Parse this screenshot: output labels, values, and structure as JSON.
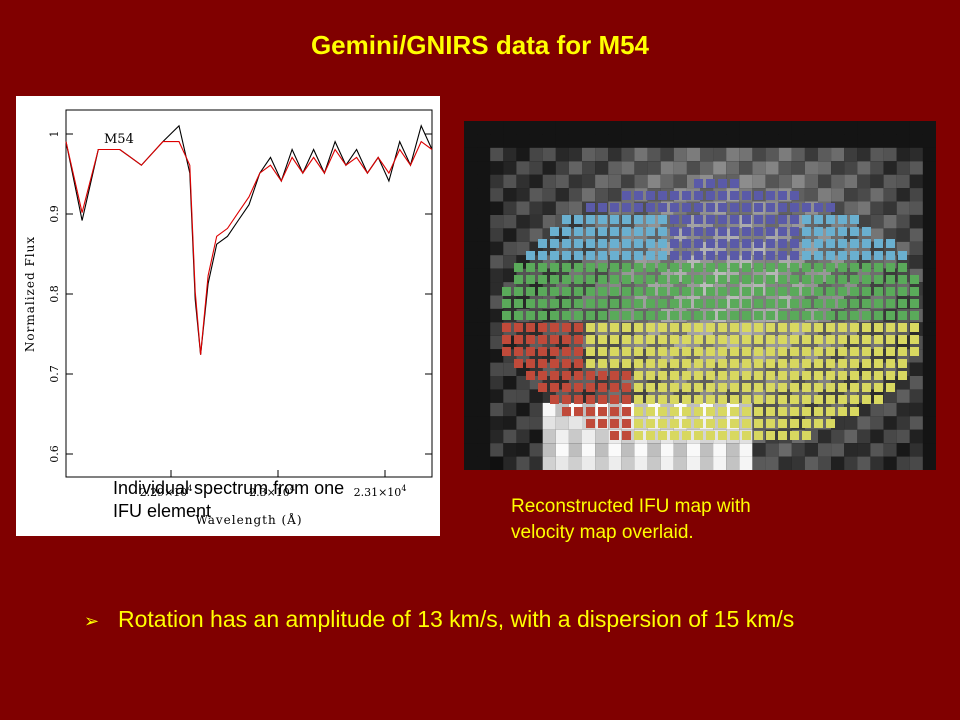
{
  "title": "Gemini/GNIRS data for M54",
  "spectrum": {
    "object_label": "M54",
    "ylabel": "Normalized Flux",
    "xlabel": "Wavelength (Å)",
    "yticks": [
      "1",
      "0.9",
      "0.8",
      "0.7",
      "0.6"
    ],
    "xticks": [
      "2.29×10",
      "2.3×10",
      "2.31×10"
    ],
    "xtick_exponent": "4",
    "caption_line1": "Individual spectrum from one",
    "caption_line2": "IFU element",
    "colors": {
      "observed": "#000000",
      "model": "#dd0000"
    }
  },
  "chart_data": {
    "type": "line",
    "xlabel": "Wavelength (Å)",
    "ylabel": "Normalized Flux",
    "ylim": [
      0.575,
      1.04
    ],
    "xlim": [
      22820,
      23160
    ],
    "x_ticks": [
      22900,
      23000,
      23100
    ],
    "y_ticks": [
      1.0,
      0.9,
      0.8,
      0.7,
      0.6
    ],
    "series": [
      {
        "x": [
          22820,
          22835,
          22850,
          22870,
          22890,
          22910,
          22925,
          22935,
          22940,
          22945,
          22952,
          22960,
          22970,
          22980,
          22990,
          23000,
          23010,
          23020,
          23030,
          23040,
          23050,
          23060,
          23070,
          23080,
          23090,
          23100,
          23110,
          23120,
          23130,
          23140,
          23150,
          23160
        ],
        "values": [
          1.0,
          0.9,
          0.99,
          0.99,
          0.97,
          1.0,
          1.02,
          0.96,
          0.8,
          0.73,
          0.82,
          0.87,
          0.88,
          0.9,
          0.92,
          0.96,
          0.98,
          0.95,
          0.99,
          0.96,
          0.99,
          0.96,
          1.0,
          0.97,
          0.99,
          0.96,
          0.98,
          0.95,
          1.0,
          0.97,
          1.02,
          0.99
        ]
      },
      {
        "x": [
          22820,
          22835,
          22850,
          22870,
          22890,
          22910,
          22925,
          22935,
          22940,
          22945,
          22952,
          22960,
          22970,
          22980,
          22990,
          23000,
          23010,
          23020,
          23030,
          23040,
          23050,
          23060,
          23070,
          23080,
          23090,
          23100,
          23110,
          23120,
          23130,
          23140,
          23150,
          23160
        ],
        "values": [
          1.0,
          0.91,
          0.99,
          0.99,
          0.97,
          1.0,
          1.0,
          0.97,
          0.81,
          0.73,
          0.83,
          0.88,
          0.89,
          0.91,
          0.93,
          0.96,
          0.97,
          0.95,
          0.98,
          0.96,
          0.98,
          0.96,
          0.99,
          0.97,
          0.98,
          0.96,
          0.98,
          0.96,
          0.99,
          0.97,
          1.0,
          0.99
        ]
      }
    ]
  },
  "ifu": {
    "caption_line1": "Reconstructed IFU map with",
    "caption_line2": "velocity map overlaid.",
    "palette": [
      "#5a5aa8",
      "#6ab0d0",
      "#5aaa5a",
      "#d8d860",
      "#c04a3a"
    ]
  },
  "bullet": {
    "symbol": "➢",
    "text": "Rotation has an amplitude of 13 km/s, with a dispersion of 15 km/s"
  }
}
